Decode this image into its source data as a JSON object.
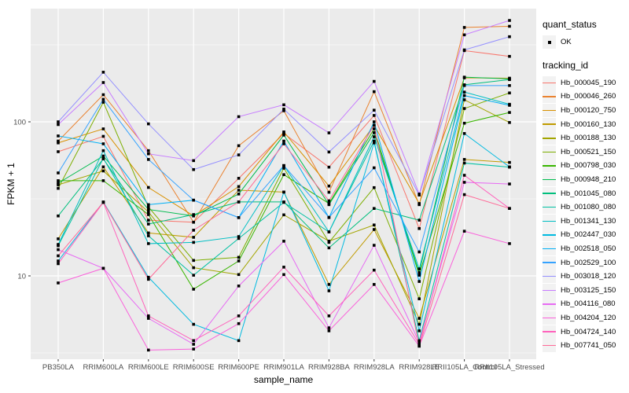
{
  "figure": {
    "background": "#FFFFFF",
    "panel_background": "#EBEBEB",
    "gridline_color": "#FFFFFF",
    "tick_color": "#333333",
    "tick_label_color": "#4D4D4D",
    "point_color": "#000000"
  },
  "axes": {
    "x": {
      "title": "sample_name",
      "tick_labels": [
        "PB350LA",
        "RRIM600LA",
        "RRIM600LE",
        "RRIM600SE",
        "RRIM600PE",
        "RRIM901LA",
        "RRIM928BA",
        "RRIM928LA",
        "RRIM928LE",
        "RRII105LA_Control",
        "RRII105LA_Stressed"
      ]
    },
    "y": {
      "title": "FPKM + 1",
      "scale": "log10",
      "tick_labels": [
        "100",
        "10"
      ],
      "tick_values": [
        100,
        10
      ],
      "minor_gridline_values": [
        3.162,
        31.62,
        316.2
      ]
    }
  },
  "legend": {
    "quant_status": {
      "title": "quant_status",
      "items": [
        {
          "label": "OK",
          "symbol": "black-square-point"
        }
      ]
    },
    "tracking_id": {
      "title": "tracking_id",
      "items": [
        {
          "label": "Hb_000045_190",
          "color": "#F8766D"
        },
        {
          "label": "Hb_000046_260",
          "color": "#EA8331"
        },
        {
          "label": "Hb_000120_750",
          "color": "#D89000"
        },
        {
          "label": "Hb_000160_130",
          "color": "#C09B00"
        },
        {
          "label": "Hb_000188_130",
          "color": "#A3A500"
        },
        {
          "label": "Hb_000521_150",
          "color": "#7CAE00"
        },
        {
          "label": "Hb_000798_030",
          "color": "#39B600"
        },
        {
          "label": "Hb_000948_210",
          "color": "#00BB4E"
        },
        {
          "label": "Hb_001045_080",
          "color": "#00BF7D"
        },
        {
          "label": "Hb_001080_080",
          "color": "#00C1A3"
        },
        {
          "label": "Hb_001341_130",
          "color": "#00BFC4"
        },
        {
          "label": "Hb_002447_030",
          "color": "#00BAE0"
        },
        {
          "label": "Hb_002518_050",
          "color": "#00B0F6"
        },
        {
          "label": "Hb_002529_100",
          "color": "#35A2FF"
        },
        {
          "label": "Hb_003018_120",
          "color": "#9590FF"
        },
        {
          "label": "Hb_003125_150",
          "color": "#C77CFF"
        },
        {
          "label": "Hb_004116_080",
          "color": "#E76BF3"
        },
        {
          "label": "Hb_004204_120",
          "color": "#FA62DB"
        },
        {
          "label": "Hb_004724_140",
          "color": "#FF62BC"
        },
        {
          "label": "Hb_007741_050",
          "color": "#FF6A98"
        }
      ]
    }
  },
  "chart_data": {
    "type": "line",
    "title": "",
    "xlabel": "sample_name",
    "ylabel": "FPKM + 1",
    "y_scale": "log10",
    "ylim": [
      2.8,
      530
    ],
    "grid": true,
    "legend_position": "right",
    "point_marker": "square",
    "point_color": "#000000",
    "x_categories": [
      "PB350LA",
      "RRIM600LA",
      "RRIM600LE",
      "RRIM600SE",
      "RRIM600PE",
      "RRIM901LA",
      "RRIM928BA",
      "RRIM928LA",
      "RRIM928LE",
      "RRII105LA_Control",
      "RRII105LA_Stressed"
    ],
    "series": [
      {
        "name": "Hb_000045_190",
        "color": "#F8766D",
        "values": [
          64,
          80.5,
          23,
          22.3,
          43,
          84,
          50.8,
          110,
          20.3,
          290,
          266
        ]
      },
      {
        "name": "Hb_000046_260",
        "color": "#EA8331",
        "values": [
          75,
          150,
          65,
          22.3,
          70,
          118,
          34.9,
          157,
          29,
          410,
          417
        ]
      },
      {
        "name": "Hb_000120_750",
        "color": "#D89000",
        "values": [
          73,
          90,
          37.5,
          24.5,
          38,
          86,
          38.3,
          95,
          29.5,
          193,
          192
        ]
      },
      {
        "name": "Hb_000160_130",
        "color": "#C09B00",
        "values": [
          17.4,
          51,
          19,
          17.8,
          36,
          35,
          8.8,
          20,
          5.3,
          57,
          54.5
        ]
      },
      {
        "name": "Hb_000188_130",
        "color": "#A3A500",
        "values": [
          39,
          48,
          26,
          11.3,
          10.2,
          24.9,
          16.8,
          21.4,
          4.85,
          139,
          99
        ]
      },
      {
        "name": "Hb_000521_150",
        "color": "#7CAE00",
        "values": [
          37,
          134,
          28,
          12.6,
          13.2,
          50,
          16.5,
          37.4,
          7.1,
          122,
          154
        ]
      },
      {
        "name": "Hb_000798_030",
        "color": "#39B600",
        "values": [
          41.5,
          41.5,
          25,
          8.2,
          12.5,
          45.4,
          29.5,
          90,
          10.1,
          98,
          115
        ]
      },
      {
        "name": "Hb_000948_210",
        "color": "#00BB4E",
        "values": [
          40,
          60,
          27,
          24.5,
          34,
          82,
          29,
          85,
          10.5,
          195,
          190
        ]
      },
      {
        "name": "Hb_001045_080",
        "color": "#00BF7D",
        "values": [
          24.5,
          57.5,
          21.7,
          25,
          30.2,
          30.2,
          15.2,
          27.4,
          23,
          174,
          188
        ]
      },
      {
        "name": "Hb_001080_080",
        "color": "#00C1A3",
        "values": [
          15.7,
          58,
          18.2,
          10.1,
          17.5,
          30,
          19.3,
          75,
          3.8,
          54,
          50.8
        ]
      },
      {
        "name": "Hb_001341_130",
        "color": "#00BFC4",
        "values": [
          16,
          65,
          16.2,
          16.5,
          18,
          52,
          19.3,
          80,
          11.1,
          156,
          130
        ]
      },
      {
        "name": "Hb_002447_030",
        "color": "#00BAE0",
        "values": [
          12.5,
          30.2,
          9.8,
          4.85,
          3.8,
          35,
          8,
          73,
          4.4,
          84,
          51
        ]
      },
      {
        "name": "Hb_002518_050",
        "color": "#00B0F6",
        "values": [
          81,
          72,
          29,
          31,
          23.9,
          75,
          23.9,
          100,
          9.2,
          148,
          128
        ]
      },
      {
        "name": "Hb_002529_100",
        "color": "#35A2FF",
        "values": [
          46.6,
          140,
          57,
          31,
          23.9,
          52,
          24,
          50.3,
          14.3,
          172,
          172
        ]
      },
      {
        "name": "Hb_003018_120",
        "color": "#9590FF",
        "values": [
          100,
          210,
          97,
          49,
          61,
          121,
          63.7,
          119,
          33.5,
          293,
          357
        ]
      },
      {
        "name": "Hb_003125_150",
        "color": "#C77CFF",
        "values": [
          96,
          180,
          62,
          56,
          108,
          129,
          84.8,
          183,
          34,
          367,
          455
        ]
      },
      {
        "name": "Hb_004116_080",
        "color": "#E76BF3",
        "values": [
          14.8,
          11.2,
          5.3,
          3.6,
          8.6,
          16.8,
          4.6,
          15.8,
          3.7,
          40.5,
          39.5
        ]
      },
      {
        "name": "Hb_004204_120",
        "color": "#FA62DB",
        "values": [
          9,
          11.2,
          3.3,
          3.35,
          4.9,
          10.2,
          4.4,
          8.8,
          3.5,
          19.5,
          16.2
        ]
      },
      {
        "name": "Hb_004724_140",
        "color": "#FF62BC",
        "values": [
          12,
          30,
          5.5,
          3.8,
          5.5,
          11.4,
          5.5,
          10.9,
          3.6,
          45,
          27.4
        ]
      },
      {
        "name": "Hb_007741_050",
        "color": "#FF6A98",
        "values": [
          13.5,
          30,
          9.5,
          19.8,
          30.2,
          72,
          30.7,
          95,
          3.5,
          33.7,
          27.4
        ]
      }
    ]
  }
}
